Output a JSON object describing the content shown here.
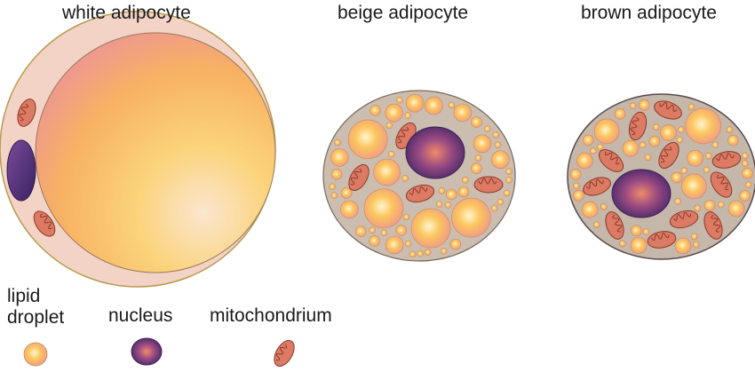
{
  "labels": {
    "white": "white adipocyte",
    "beige": "beige adipocyte",
    "brown": "brown adipocyte"
  },
  "legend": {
    "lipid_line1": "lipid",
    "lipid_line2": "droplet",
    "nucleus": "nucleus",
    "mitochondrion": "mitochondrium"
  },
  "colors": {
    "cytoplasm_white": "#f3d3c6",
    "cytoplasm_packed": "#c9bcae",
    "membrane": "#b89a4e",
    "lipid_light": "#fff3c2",
    "lipid_mid": "#fbc15e",
    "lipid_edge": "#f09a80",
    "nucleus_center": "#f08070",
    "nucleus_edge": "#4a2a6a",
    "mito_fill": "#d9735e",
    "mito_stroke": "#8a3a2a"
  }
}
